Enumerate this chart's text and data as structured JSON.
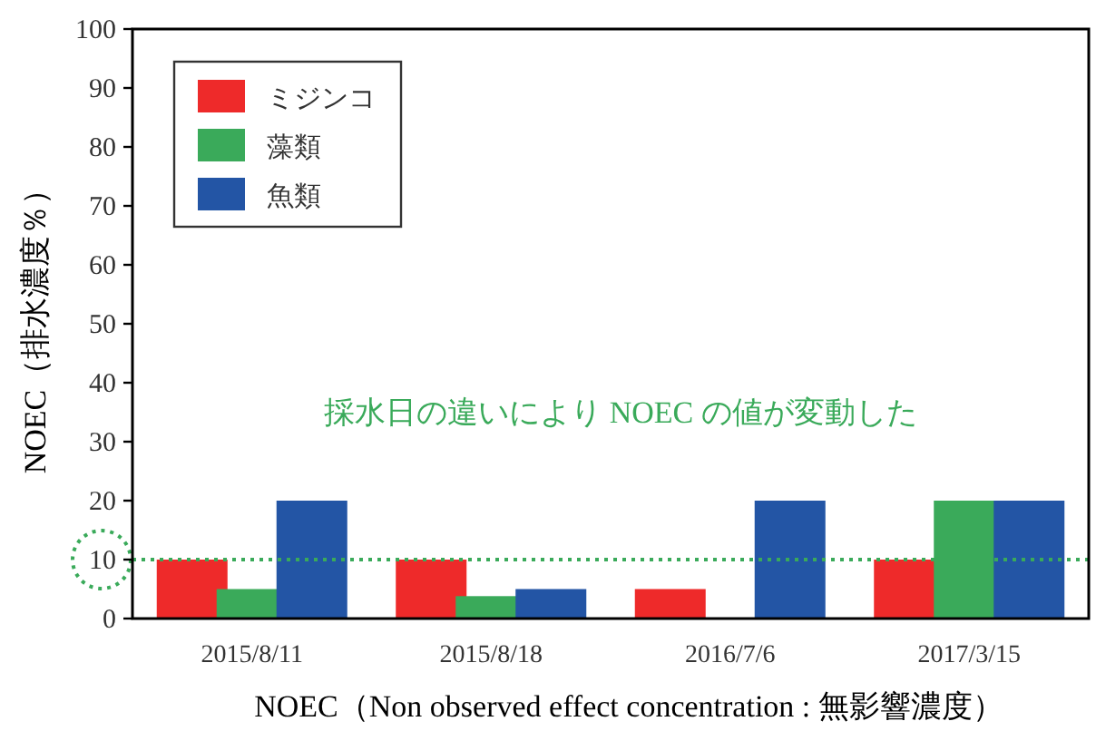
{
  "chart_data": {
    "type": "bar",
    "xlabel": "NOEC（Non observed effect concentration : 無影響濃度）",
    "ylabel": "NOEC（排水濃度％）",
    "categories": [
      "2015/8/11",
      "2015/8/18",
      "2016/7/6",
      "2017/3/15"
    ],
    "series": [
      {
        "name": "ミジンコ",
        "color": "#ee2a2a",
        "values": [
          10,
          10,
          5,
          10
        ]
      },
      {
        "name": "藻類",
        "color": "#3aaa5a",
        "values": [
          5,
          3.8,
          null,
          20
        ]
      },
      {
        "name": "魚類",
        "color": "#2355a5",
        "values": [
          20,
          5,
          20,
          20
        ]
      }
    ],
    "ylim": [
      0,
      100
    ],
    "yticks": [
      0,
      10,
      20,
      30,
      40,
      50,
      60,
      70,
      80,
      90,
      100
    ],
    "ref_lines": [
      {
        "axis": "y",
        "value": 10,
        "color": "#3aaa5a",
        "line_style": "dotted"
      }
    ],
    "annotations": [
      "採水日の違いにより NOEC の値が変動した"
    ],
    "legend": "top left",
    "grid": false
  }
}
